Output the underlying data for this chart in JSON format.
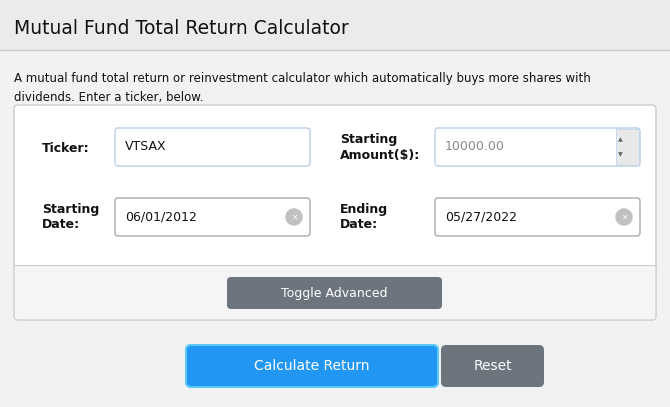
{
  "title": "Mutual Fund Total Return Calculator",
  "subtitle": "A mutual fund total return or reinvestment calculator which automatically buys more shares with\ndividends. Enter a ticker, below.",
  "bg_color": "#f2f2f2",
  "header_bg": "#ebebeb",
  "white": "#ffffff",
  "border_color": "#cccccc",
  "input_border": "#b8cfe8",
  "date_border": "#aaaaaa",
  "text_dark": "#111111",
  "text_gray": "#888888",
  "blue_btn": "#2196f3",
  "gray_btn": "#6c757d",
  "toggle_btn_text": "Toggle Advanced",
  "calc_btn_text": "Calculate Return",
  "reset_btn_text": "Reset",
  "ticker_value": "VTSAX",
  "amount_value": "10000.00",
  "start_date_value": "06/01/2012",
  "end_date_value": "05/27/2022"
}
